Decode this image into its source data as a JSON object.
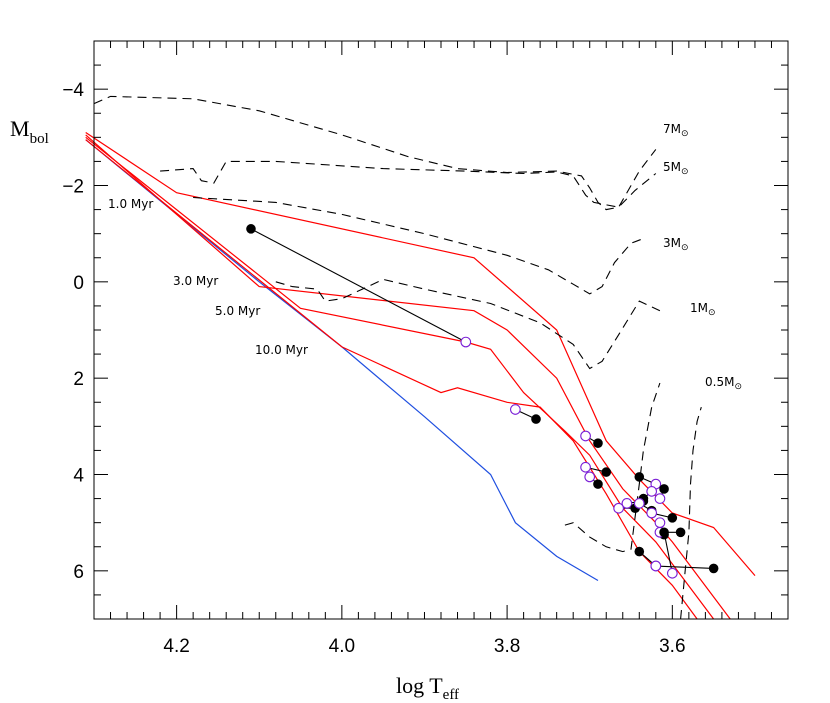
{
  "chart_data": {
    "type": "scatter",
    "xlabel": "log T",
    "xlabel_sub": "eff",
    "ylabel": "M",
    "ylabel_sub": "bol",
    "xlim": [
      4.3,
      3.46
    ],
    "ylim": [
      7,
      -5
    ],
    "x_ticks": [
      "4.2",
      "4.0",
      "3.8",
      "3.6"
    ],
    "y_ticks": [
      "−4",
      "−2",
      "0",
      "2",
      "4",
      "6"
    ],
    "x_tick_values": [
      4.2,
      4.0,
      3.8,
      3.6
    ],
    "y_tick_values": [
      -4,
      -2,
      0,
      2,
      4,
      6
    ],
    "colors": {
      "isochrone": "#ff0000",
      "zams": "#1f4fe0",
      "track": "#000000",
      "pair_line": "#000000",
      "open_marker": "#7a1fd6"
    },
    "isochrones": [
      {
        "label": "1.0 Myr",
        "points": [
          [
            4.31,
            -3.1
          ],
          [
            4.2,
            -1.85
          ],
          [
            3.84,
            -0.5
          ],
          [
            3.74,
            1.0
          ],
          [
            3.68,
            3.3
          ],
          [
            3.64,
            4.1
          ],
          [
            3.6,
            4.8
          ],
          [
            3.55,
            5.1
          ],
          [
            3.5,
            6.1
          ]
        ]
      },
      {
        "label": "3.0 Myr",
        "points": [
          [
            4.31,
            -3.05
          ],
          [
            4.1,
            0.1
          ],
          [
            3.84,
            0.6
          ],
          [
            3.8,
            1.0
          ],
          [
            3.74,
            2.0
          ],
          [
            3.7,
            3.3
          ],
          [
            3.66,
            4.3
          ],
          [
            3.62,
            5.0
          ],
          [
            3.6,
            5.4
          ],
          [
            3.53,
            7.0
          ]
        ]
      },
      {
        "label": "5.0 Myr",
        "points": [
          [
            4.31,
            -3.0
          ],
          [
            4.05,
            0.55
          ],
          [
            3.85,
            1.25
          ],
          [
            3.82,
            1.4
          ],
          [
            3.78,
            2.3
          ],
          [
            3.73,
            3.1
          ],
          [
            3.7,
            3.6
          ],
          [
            3.66,
            4.7
          ],
          [
            3.62,
            5.4
          ],
          [
            3.55,
            7.0
          ]
        ]
      },
      {
        "label": "10.0 Myr",
        "points": [
          [
            4.31,
            -2.95
          ],
          [
            4.0,
            1.35
          ],
          [
            3.88,
            2.3
          ],
          [
            3.86,
            2.2
          ],
          [
            3.8,
            2.5
          ],
          [
            3.76,
            2.6
          ],
          [
            3.72,
            3.3
          ],
          [
            3.68,
            4.4
          ],
          [
            3.64,
            5.6
          ],
          [
            3.6,
            6.3
          ],
          [
            3.57,
            7.0
          ]
        ]
      }
    ],
    "zams": {
      "points": [
        [
          4.31,
          -2.95
        ],
        [
          4.1,
          0.0
        ],
        [
          4.0,
          1.35
        ],
        [
          3.9,
          2.8
        ],
        [
          3.82,
          4.0
        ],
        [
          3.79,
          5.0
        ],
        [
          3.74,
          5.7
        ],
        [
          3.69,
          6.2
        ]
      ]
    },
    "mass_tracks": [
      {
        "label": "7M",
        "points": [
          [
            4.3,
            -3.7
          ],
          [
            4.28,
            -3.85
          ],
          [
            4.18,
            -3.8
          ],
          [
            4.1,
            -3.55
          ],
          [
            4.0,
            -3.05
          ],
          [
            3.92,
            -2.6
          ],
          [
            3.86,
            -2.35
          ],
          [
            3.8,
            -2.27
          ],
          [
            3.74,
            -2.3
          ],
          [
            3.71,
            -2.2
          ],
          [
            3.7,
            -1.95
          ],
          [
            3.69,
            -1.65
          ],
          [
            3.68,
            -1.5
          ],
          [
            3.665,
            -1.55
          ],
          [
            3.64,
            -2.3
          ],
          [
            3.62,
            -2.75
          ]
        ]
      },
      {
        "label": "5M",
        "points": [
          [
            4.22,
            -2.3
          ],
          [
            4.18,
            -2.35
          ],
          [
            4.17,
            -2.1
          ],
          [
            4.155,
            -2.05
          ],
          [
            4.14,
            -2.5
          ],
          [
            4.08,
            -2.5
          ],
          [
            3.95,
            -2.35
          ],
          [
            3.85,
            -2.3
          ],
          [
            3.78,
            -2.25
          ],
          [
            3.74,
            -2.28
          ],
          [
            3.72,
            -2.2
          ],
          [
            3.705,
            -1.8
          ],
          [
            3.695,
            -1.65
          ],
          [
            3.665,
            -1.55
          ],
          [
            3.645,
            -1.9
          ],
          [
            3.62,
            -2.25
          ]
        ]
      },
      {
        "label": "3M",
        "points": [
          [
            4.18,
            -1.75
          ],
          [
            4.08,
            -1.65
          ],
          [
            4.0,
            -1.4
          ],
          [
            3.9,
            -1.0
          ],
          [
            3.8,
            -0.55
          ],
          [
            3.75,
            -0.25
          ],
          [
            3.72,
            0.05
          ],
          [
            3.7,
            0.25
          ],
          [
            3.685,
            0.1
          ],
          [
            3.67,
            -0.4
          ],
          [
            3.65,
            -0.8
          ],
          [
            3.635,
            -0.9
          ]
        ]
      },
      {
        "label": "1M",
        "points": [
          [
            4.08,
            0.0
          ],
          [
            4.06,
            0.1
          ],
          [
            4.03,
            0.15
          ],
          [
            4.02,
            0.4
          ],
          [
            4.0,
            0.35
          ],
          [
            3.95,
            -0.05
          ],
          [
            3.9,
            0.15
          ],
          [
            3.82,
            0.45
          ],
          [
            3.76,
            0.85
          ],
          [
            3.72,
            1.3
          ],
          [
            3.7,
            1.8
          ],
          [
            3.685,
            1.65
          ],
          [
            3.665,
            1.1
          ],
          [
            3.64,
            0.4
          ],
          [
            3.615,
            0.6
          ]
        ]
      },
      {
        "label": "0.5M",
        "points": [
          [
            3.73,
            5.05
          ],
          [
            3.72,
            5.0
          ],
          [
            3.7,
            5.3
          ],
          [
            3.68,
            5.5
          ],
          [
            3.66,
            5.6
          ],
          [
            3.65,
            5.55
          ],
          [
            3.64,
            4.2
          ],
          [
            3.635,
            3.5
          ],
          [
            3.625,
            2.6
          ],
          [
            3.615,
            2.1
          ]
        ]
      },
      {
        "label": "",
        "points": [
          [
            3.59,
            7.0
          ],
          [
            3.585,
            6.1
          ],
          [
            3.58,
            5.2
          ],
          [
            3.578,
            4.2
          ],
          [
            3.575,
            3.5
          ],
          [
            3.57,
            2.9
          ],
          [
            3.565,
            2.6
          ]
        ]
      }
    ],
    "mass_labels": [
      "7M",
      "5M",
      "3M",
      "1M",
      "0.5M"
    ],
    "mass_label_unit": "⊙",
    "pairs": [
      {
        "filled": [
          4.11,
          -1.1
        ],
        "open": [
          3.85,
          1.25
        ]
      },
      {
        "filled": [
          3.765,
          2.85
        ],
        "open": [
          3.79,
          2.65
        ]
      },
      {
        "filled": [
          3.69,
          3.35
        ],
        "open": [
          3.705,
          3.2
        ]
      },
      {
        "filled": [
          3.68,
          3.95
        ],
        "open": [
          3.705,
          3.85
        ]
      },
      {
        "filled": [
          3.69,
          4.2
        ],
        "open": [
          3.7,
          4.05
        ]
      },
      {
        "filled": [
          3.64,
          4.05
        ],
        "open": [
          3.62,
          4.2
        ]
      },
      {
        "filled": [
          3.635,
          4.5
        ],
        "open": [
          3.625,
          4.35
        ]
      },
      {
        "filled": [
          3.61,
          4.3
        ],
        "open": [
          3.615,
          4.5
        ]
      },
      {
        "filled": [
          3.635,
          4.55
        ],
        "open": [
          3.655,
          4.6
        ]
      },
      {
        "filled": [
          3.645,
          4.7
        ],
        "open": [
          3.665,
          4.7
        ]
      },
      {
        "filled": [
          3.625,
          4.75
        ],
        "open": [
          3.64,
          4.6
        ]
      },
      {
        "filled": [
          3.6,
          4.9
        ],
        "open": [
          3.625,
          4.8
        ]
      },
      {
        "filled": [
          3.61,
          5.25
        ],
        "open": [
          3.615,
          5.0
        ]
      },
      {
        "filled": [
          3.59,
          5.2
        ],
        "open": [
          3.615,
          5.2
        ]
      },
      {
        "filled": [
          3.64,
          5.6
        ],
        "open": [
          3.62,
          5.9
        ]
      },
      {
        "filled": [
          3.55,
          5.95
        ],
        "open": [
          3.62,
          5.9
        ]
      },
      {
        "filled": [
          3.61,
          5.2
        ],
        "open": [
          3.6,
          6.05
        ]
      }
    ]
  }
}
